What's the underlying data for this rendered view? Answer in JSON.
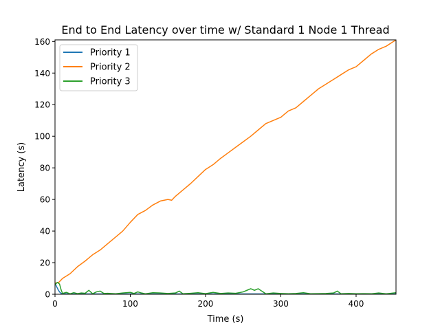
{
  "chart_data": {
    "type": "line",
    "title": "End to End Latency over time w/ Standard 1 Node 1 Thread",
    "xlabel": "Time (s)",
    "ylabel": "Latency (s)",
    "xlim": [
      0,
      453
    ],
    "ylim": [
      0,
      161
    ],
    "xticks": [
      0,
      100,
      200,
      300,
      400
    ],
    "yticks": [
      0,
      20,
      40,
      60,
      80,
      100,
      120,
      140,
      160
    ],
    "grid": false,
    "legend_position": "top-left",
    "series": [
      {
        "name": "Priority 1",
        "color": "#1f77b4",
        "x": [
          0,
          2,
          4,
          6,
          8,
          12,
          20,
          40,
          60,
          80,
          100,
          150,
          200,
          250,
          300,
          350,
          400,
          453
        ],
        "y": [
          7,
          5,
          3,
          1.5,
          0.6,
          0.3,
          0.2,
          0.2,
          0.2,
          0.2,
          0.2,
          0.2,
          0.2,
          0.2,
          0.2,
          0.2,
          0.2,
          0.2
        ]
      },
      {
        "name": "Priority 2",
        "color": "#ff7f0e",
        "x": [
          0,
          5,
          10,
          20,
          30,
          40,
          50,
          60,
          70,
          80,
          90,
          100,
          110,
          120,
          130,
          140,
          150,
          155,
          160,
          170,
          180,
          190,
          200,
          210,
          220,
          230,
          240,
          250,
          260,
          270,
          280,
          290,
          300,
          310,
          320,
          330,
          340,
          350,
          360,
          370,
          380,
          390,
          400,
          410,
          420,
          430,
          440,
          453
        ],
        "y": [
          7,
          7.5,
          10,
          13,
          17.5,
          21,
          25,
          28,
          32,
          36,
          40,
          45.5,
          50.5,
          53,
          56.5,
          59,
          60,
          59.5,
          62,
          66,
          70,
          74.5,
          79,
          82,
          86,
          89.5,
          93,
          96.5,
          100,
          104,
          108,
          110,
          112,
          116,
          118,
          122,
          126,
          130,
          133,
          136,
          139,
          142,
          144,
          148,
          152,
          155,
          157,
          161
        ]
      },
      {
        "name": "Priority 3",
        "color": "#2ca02c",
        "x": [
          0,
          3,
          6,
          8,
          10,
          15,
          20,
          25,
          30,
          35,
          40,
          45,
          50,
          55,
          60,
          65,
          70,
          80,
          90,
          100,
          105,
          110,
          115,
          120,
          130,
          140,
          150,
          160,
          165,
          170,
          180,
          190,
          200,
          210,
          220,
          230,
          240,
          250,
          255,
          260,
          265,
          270,
          280,
          290,
          300,
          310,
          320,
          330,
          340,
          350,
          360,
          370,
          375,
          380,
          390,
          400,
          410,
          420,
          430,
          440,
          453
        ],
        "y": [
          6,
          7.5,
          6.5,
          3,
          0.5,
          1.2,
          0.3,
          1,
          0.4,
          0.8,
          0.6,
          2.5,
          0.3,
          1.5,
          2,
          0.5,
          0.6,
          0.3,
          0.8,
          1.2,
          0.5,
          1.5,
          0.8,
          0.3,
          1,
          0.8,
          0.5,
          0.8,
          2,
          0.3,
          0.6,
          1,
          0.4,
          1.2,
          0.5,
          0.8,
          0.6,
          1.5,
          2.5,
          3.5,
          2.5,
          3.5,
          0.3,
          0.8,
          0.5,
          0.3,
          0.5,
          1,
          0.3,
          0.4,
          0.5,
          0.8,
          2,
          0.3,
          0.5,
          0.3,
          0.4,
          0.3,
          0.8,
          0.3,
          1
        ]
      }
    ]
  }
}
